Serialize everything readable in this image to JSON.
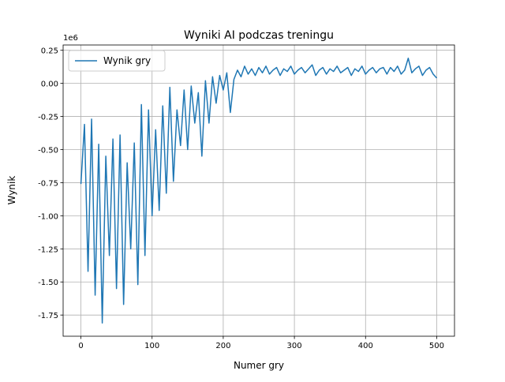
{
  "chart_data": {
    "type": "line",
    "title": "Wyniki AI podczas treningu",
    "xlabel": "Numer gry",
    "ylabel": "Wynik",
    "y_offset_label": "1e6",
    "x": [
      0,
      5,
      10,
      15,
      20,
      25,
      30,
      35,
      40,
      45,
      50,
      55,
      60,
      65,
      70,
      75,
      80,
      85,
      90,
      95,
      100,
      105,
      110,
      115,
      120,
      125,
      130,
      135,
      140,
      145,
      150,
      155,
      160,
      165,
      170,
      175,
      180,
      185,
      190,
      195,
      200,
      205,
      210,
      215,
      220,
      225,
      230,
      235,
      240,
      245,
      250,
      255,
      260,
      265,
      270,
      275,
      280,
      285,
      290,
      295,
      300,
      305,
      310,
      315,
      320,
      325,
      330,
      335,
      340,
      345,
      350,
      355,
      360,
      365,
      370,
      375,
      380,
      385,
      390,
      395,
      400,
      405,
      410,
      415,
      420,
      425,
      430,
      435,
      440,
      445,
      450,
      455,
      460,
      465,
      470,
      475,
      480,
      485,
      490,
      495,
      500
    ],
    "series": [
      {
        "name": "Wynik gry",
        "color": "#1f77b4",
        "values": [
          -0.76,
          -0.31,
          -1.42,
          -0.27,
          -1.6,
          -0.46,
          -1.81,
          -0.55,
          -1.3,
          -0.42,
          -1.55,
          -0.39,
          -1.67,
          -0.6,
          -1.25,
          -0.45,
          -1.52,
          -0.16,
          -1.3,
          -0.2,
          -1.0,
          -0.35,
          -0.96,
          -0.17,
          -0.83,
          -0.03,
          -0.74,
          -0.2,
          -0.47,
          -0.05,
          -0.5,
          -0.02,
          -0.3,
          -0.07,
          -0.55,
          0.02,
          -0.3,
          0.05,
          -0.15,
          0.06,
          -0.05,
          0.08,
          -0.22,
          0.03,
          0.1,
          0.05,
          0.13,
          0.07,
          0.11,
          0.06,
          0.12,
          0.08,
          0.13,
          0.07,
          0.1,
          0.12,
          0.06,
          0.11,
          0.09,
          0.13,
          0.07,
          0.1,
          0.12,
          0.08,
          0.11,
          0.14,
          0.06,
          0.1,
          0.12,
          0.07,
          0.11,
          0.09,
          0.13,
          0.08,
          0.1,
          0.12,
          0.06,
          0.11,
          0.09,
          0.13,
          0.07,
          0.1,
          0.12,
          0.08,
          0.11,
          0.12,
          0.07,
          0.12,
          0.09,
          0.13,
          0.07,
          0.1,
          0.19,
          0.08,
          0.11,
          0.13,
          0.06,
          0.1,
          0.12,
          0.07,
          0.04
        ]
      }
    ],
    "xlim": [
      -25,
      525
    ],
    "xticks": [
      0,
      100,
      200,
      300,
      400,
      500
    ],
    "ylim": [
      -1.91,
      0.29
    ],
    "yticks": [
      0.25,
      {
        "value": 0,
        "label": "0.00"
      },
      -0.25,
      {
        "value": -0.5,
        "label": "-0.50"
      },
      -0.75,
      {
        "value": -1,
        "label": "-1.00"
      },
      -1.25,
      {
        "value": -1.5,
        "label": "-1.50"
      },
      -1.75
    ],
    "grid": true,
    "legend": "upper left"
  }
}
